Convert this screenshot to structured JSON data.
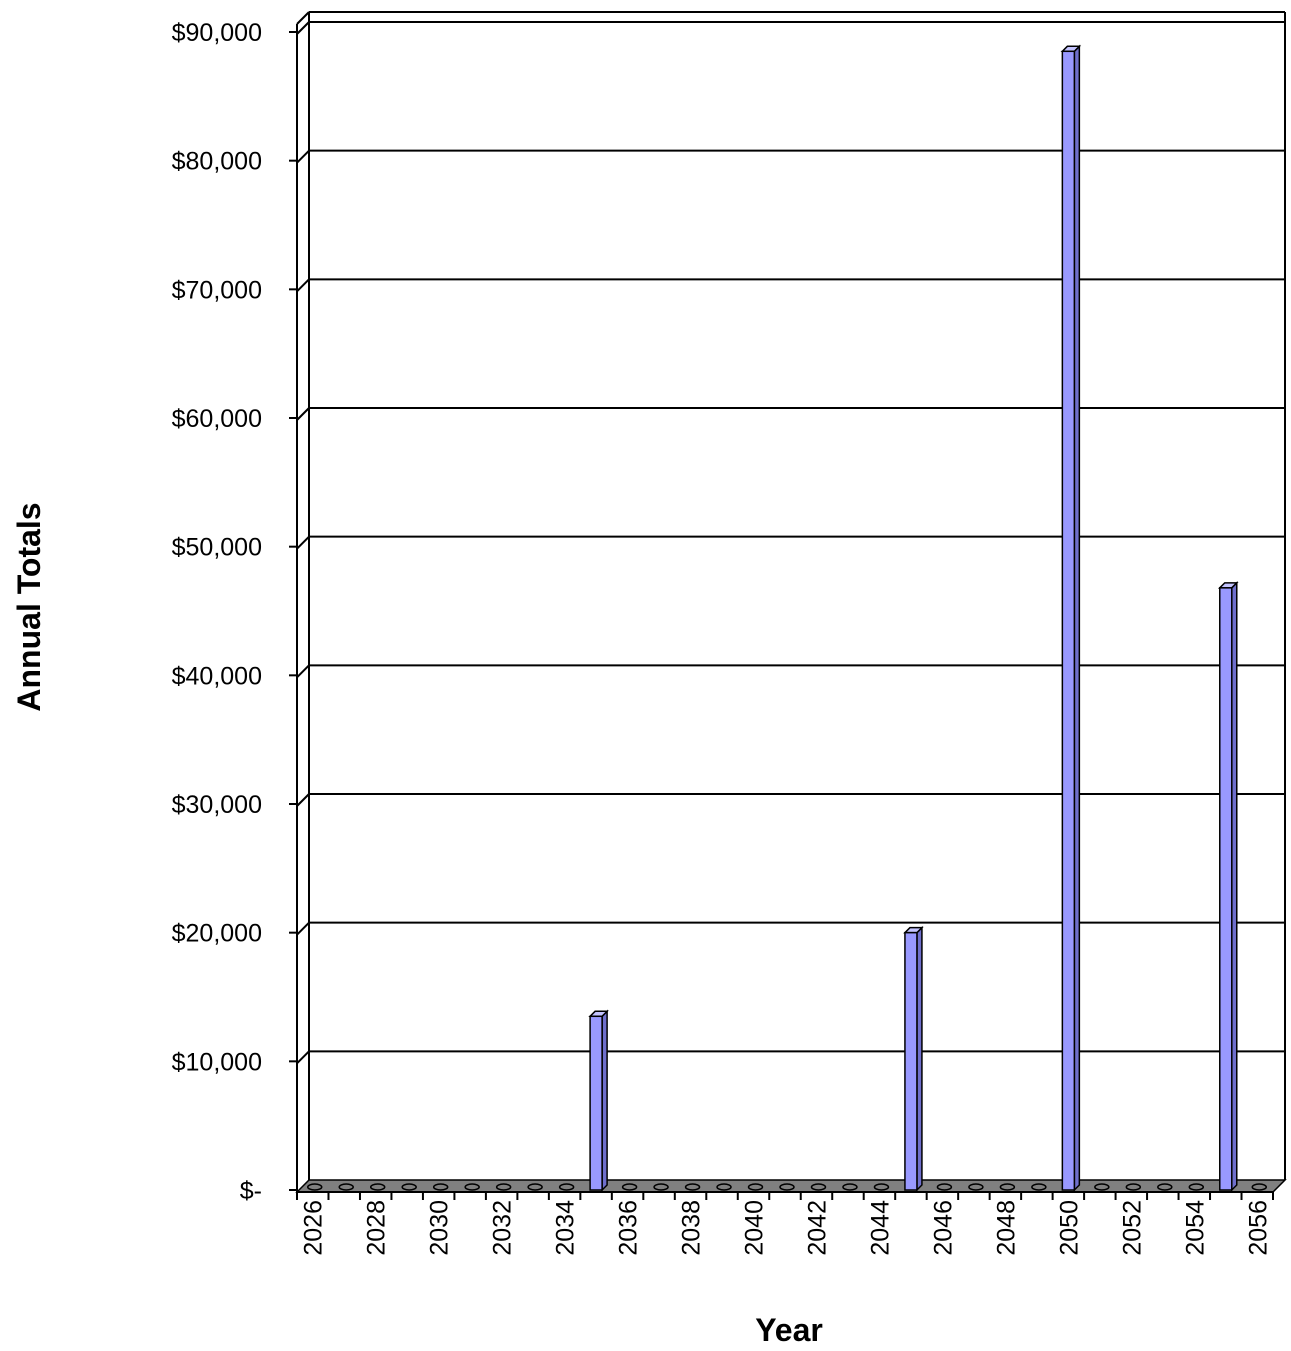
{
  "chart_data": {
    "type": "bar",
    "title": "",
    "xlabel": "Year",
    "ylabel": "Annual Totals",
    "ylim": [
      0,
      90000
    ],
    "y_ticks": [
      0,
      10000,
      20000,
      30000,
      40000,
      50000,
      60000,
      70000,
      80000,
      90000
    ],
    "y_tick_labels": [
      "$-",
      "$10,000",
      "$20,000",
      "$30,000",
      "$40,000",
      "$50,000",
      "$60,000",
      "$70,000",
      "$80,000",
      "$90,000"
    ],
    "x_tick_labels": [
      "2026",
      "2028",
      "2030",
      "2032",
      "2034",
      "2036",
      "2038",
      "2040",
      "2042",
      "2044",
      "2046",
      "2048",
      "2050",
      "2052",
      "2054",
      "2056"
    ],
    "categories": [
      "2026",
      "2027",
      "2028",
      "2029",
      "2030",
      "2031",
      "2032",
      "2033",
      "2034",
      "2035",
      "2036",
      "2037",
      "2038",
      "2039",
      "2040",
      "2041",
      "2042",
      "2043",
      "2044",
      "2045",
      "2046",
      "2047",
      "2048",
      "2049",
      "2050",
      "2051",
      "2052",
      "2053",
      "2054",
      "2055",
      "2056"
    ],
    "values": [
      0,
      0,
      0,
      0,
      0,
      0,
      0,
      0,
      0,
      13500,
      0,
      0,
      0,
      0,
      0,
      0,
      0,
      0,
      0,
      20000,
      0,
      0,
      0,
      0,
      88500,
      0,
      0,
      0,
      0,
      46800,
      0
    ],
    "grid": true,
    "legend": "none",
    "bar_color": "#9999ff",
    "bar_side_color": "#6f6fcc",
    "bar_top_color": "#c4c4ff",
    "floor_color": "#808080"
  }
}
